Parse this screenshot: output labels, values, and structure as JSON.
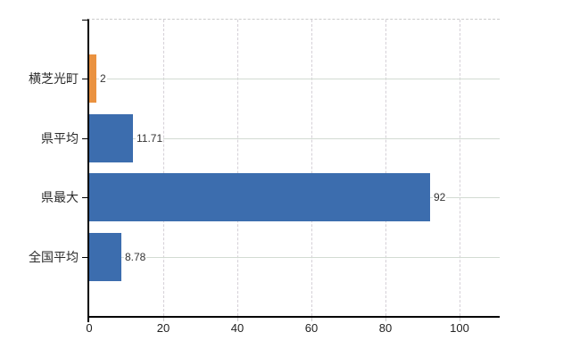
{
  "chart_data": {
    "type": "bar",
    "orientation": "horizontal",
    "title": "",
    "xlabel": "",
    "ylabel": "",
    "categories": [
      "横芝光町",
      "県平均",
      "県最大",
      "全国平均"
    ],
    "values": [
      2,
      11.71,
      92,
      8.78
    ],
    "value_labels": [
      "2",
      "11.71",
      "92",
      "8.78"
    ],
    "bar_colors": [
      "#ea9240",
      "#3c6dae",
      "#3c6dae",
      "#3c6dae"
    ],
    "xlim": [
      0,
      110.8
    ],
    "xticks": [
      0,
      20,
      40,
      60,
      80,
      100
    ],
    "xtick_labels": [
      "0",
      "20",
      "40",
      "60",
      "80",
      "100"
    ],
    "grid": true,
    "legend": "none",
    "colors": {
      "highlight_bar": "#ea9240",
      "default_bar": "#3c6dae",
      "axis": "#000000",
      "horizontal_grid": "#d2dbd2",
      "vertical_grid": "#d5d0d7",
      "label_text": "#2b2b2b",
      "value_text": "#333333",
      "background": "#ffffff"
    }
  }
}
